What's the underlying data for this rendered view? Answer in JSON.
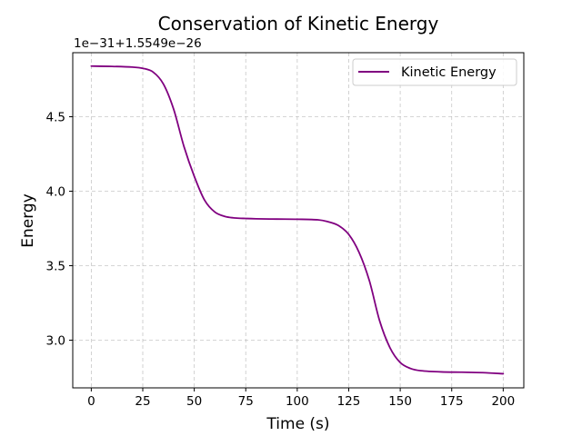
{
  "chart_data": {
    "type": "line",
    "title": "Conservation of Kinetic Energy",
    "xlabel": "Time (s)",
    "ylabel": "Energy",
    "y_offset_label": "1e−31+1.5549e−26",
    "xlim": [
      -9,
      210
    ],
    "ylim": [
      2.68,
      4.93
    ],
    "x_ticks": [
      0,
      25,
      50,
      75,
      100,
      125,
      150,
      175,
      200
    ],
    "x_tick_labels": [
      "0",
      "25",
      "50",
      "75",
      "100",
      "125",
      "150",
      "175",
      "200"
    ],
    "y_ticks": [
      3.0,
      3.5,
      4.0,
      4.5
    ],
    "y_tick_labels": [
      "3.0",
      "3.5",
      "4.0",
      "4.5"
    ],
    "grid": true,
    "legend_position": "top-right",
    "series": [
      {
        "name": "Kinetic Energy",
        "color": "#800080",
        "x": [
          0,
          10,
          20,
          25,
          30,
          35,
          40,
          45,
          50,
          55,
          60,
          65,
          70,
          75,
          80,
          90,
          100,
          110,
          115,
          120,
          125,
          130,
          135,
          140,
          145,
          150,
          155,
          160,
          170,
          180,
          190,
          200
        ],
        "y": [
          4.84,
          4.838,
          4.833,
          4.825,
          4.8,
          4.72,
          4.55,
          4.3,
          4.1,
          3.94,
          3.86,
          3.83,
          3.82,
          3.817,
          3.815,
          3.813,
          3.812,
          3.808,
          3.795,
          3.77,
          3.71,
          3.59,
          3.4,
          3.13,
          2.95,
          2.85,
          2.81,
          2.795,
          2.787,
          2.785,
          2.782,
          2.775
        ]
      }
    ]
  }
}
